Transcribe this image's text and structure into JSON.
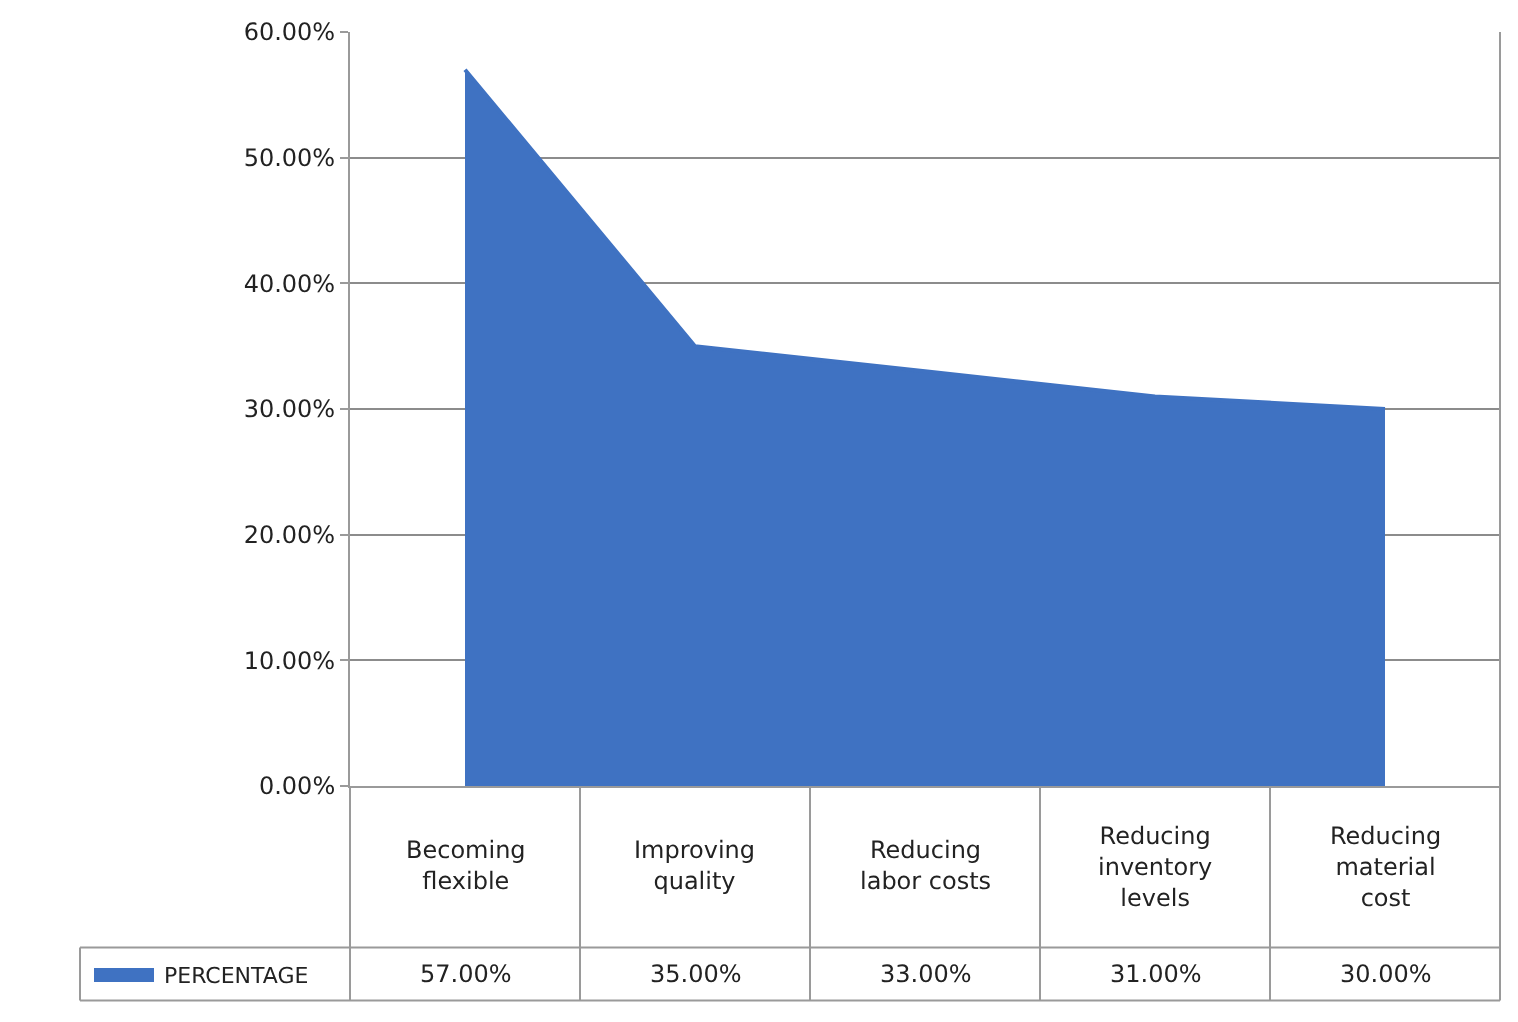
{
  "chart_data": {
    "type": "area",
    "categories": [
      "Becoming flexible",
      "Improving quality",
      "Reducing labor costs",
      "Reducing inventory levels",
      "Reducing material cost"
    ],
    "series": [
      {
        "name": "PERCENTAGE",
        "color": "#3f72c2",
        "values": [
          57,
          35,
          33,
          31,
          30
        ],
        "value_labels": [
          "57.00%",
          "35.00%",
          "33.00%",
          "31.00%",
          "30.00%"
        ]
      }
    ],
    "ylim": [
      0,
      60
    ],
    "yticks": [
      {
        "value": 0,
        "label": "0.00%"
      },
      {
        "value": 10,
        "label": "10.00%"
      },
      {
        "value": 20,
        "label": "20.00%"
      },
      {
        "value": 30,
        "label": "30.00%"
      },
      {
        "value": 40,
        "label": "40.00%"
      },
      {
        "value": 50,
        "label": "50.00%"
      },
      {
        "value": 60,
        "label": "60.00%"
      }
    ],
    "grid": "y",
    "tick_labels": "y",
    "legend": "bottom left"
  }
}
